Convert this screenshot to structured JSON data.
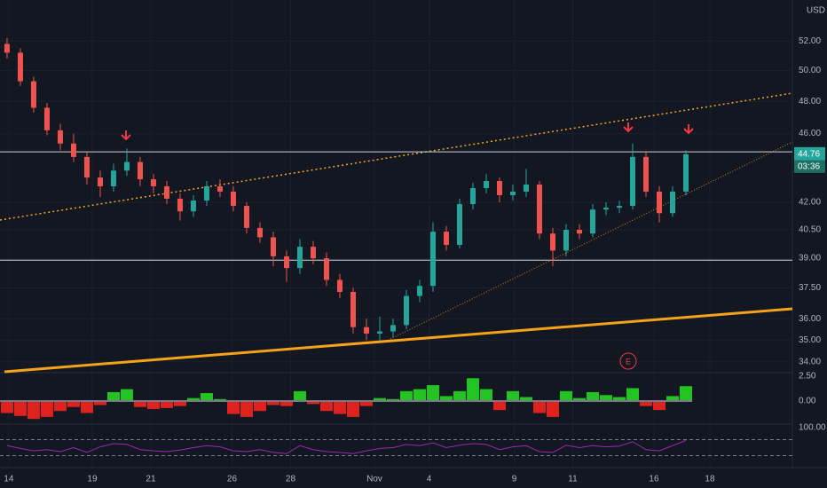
{
  "chart_data": {
    "type": "candlestick",
    "currency": "USD",
    "countdown": "03:36",
    "earnings_marker": "E",
    "log": true,
    "grid": true,
    "up_color": "#26a69a",
    "down_color": "#ef5350",
    "open": [
      51.8,
      51.2,
      49.3,
      47.6,
      46.2,
      45.4,
      44.6,
      43.4,
      42.9,
      43.8,
      44.3,
      43.3,
      42.9,
      42.2,
      41.5,
      42.1,
      42.9,
      42.6,
      41.8,
      40.6,
      40.1,
      39.1,
      38.5,
      39.6,
      39.0,
      37.9,
      37.3,
      35.6,
      35.3,
      35.4,
      35.7,
      37.1,
      37.6,
      40.4,
      39.7,
      41.9,
      42.8,
      43.2,
      42.4,
      42.6,
      43.0,
      40.3,
      39.4,
      40.5,
      40.3,
      41.6,
      41.7,
      41.8,
      44.6,
      42.6,
      41.4,
      42.6
    ],
    "high": [
      52.2,
      51.5,
      49.6,
      47.9,
      46.6,
      46.0,
      44.9,
      43.8,
      44.2,
      45.1,
      44.6,
      43.6,
      43.2,
      42.5,
      42.4,
      43.2,
      43.3,
      42.9,
      42.0,
      40.9,
      40.4,
      39.4,
      40.0,
      39.9,
      39.3,
      38.2,
      37.5,
      36.0,
      36.1,
      36.0,
      37.4,
      37.9,
      40.9,
      40.7,
      42.2,
      43.1,
      43.6,
      43.4,
      43.0,
      43.9,
      43.2,
      40.6,
      40.8,
      40.8,
      41.9,
      42.0,
      42.1,
      45.4,
      44.9,
      42.9,
      42.9,
      45.0
    ],
    "low": [
      50.8,
      49.0,
      47.3,
      45.9,
      45.0,
      44.3,
      43.0,
      42.3,
      42.6,
      43.5,
      42.9,
      42.5,
      41.9,
      41.0,
      41.2,
      41.8,
      42.3,
      41.5,
      40.3,
      39.8,
      38.6,
      37.8,
      38.2,
      38.7,
      37.6,
      37.0,
      35.3,
      35.0,
      35.0,
      35.1,
      35.5,
      36.8,
      37.3,
      39.4,
      39.5,
      41.6,
      42.5,
      42.0,
      42.1,
      42.3,
      40.0,
      38.6,
      39.1,
      40.0,
      40.1,
      41.3,
      41.4,
      41.6,
      42.3,
      40.9,
      41.2,
      42.4
    ],
    "close": [
      51.2,
      49.3,
      47.6,
      46.2,
      45.4,
      44.6,
      43.4,
      42.9,
      43.8,
      44.3,
      43.3,
      42.9,
      42.2,
      41.5,
      42.1,
      42.9,
      42.6,
      41.8,
      40.6,
      40.1,
      39.1,
      38.5,
      39.6,
      39.0,
      37.9,
      37.3,
      35.6,
      35.3,
      35.4,
      35.7,
      37.1,
      37.6,
      40.4,
      39.7,
      41.9,
      42.8,
      43.2,
      42.4,
      42.6,
      43.0,
      40.3,
      39.4,
      40.5,
      40.3,
      41.6,
      41.7,
      41.8,
      44.6,
      42.6,
      41.4,
      42.6,
      44.76
    ],
    "levels": [
      44.9,
      38.9
    ],
    "xlim": [
      -0.53,
      59
    ],
    "xticks": [
      {
        "value": 0.13,
        "label": "14"
      },
      {
        "value": 6.4,
        "label": "19"
      },
      {
        "value": 10.8,
        "label": "21"
      },
      {
        "value": 16.9,
        "label": "26"
      },
      {
        "value": 21.3,
        "label": "28"
      },
      {
        "value": 27.6,
        "label": "Nov"
      },
      {
        "value": 31.7,
        "label": "4"
      },
      {
        "value": 38.1,
        "label": "9"
      },
      {
        "value": 42.5,
        "label": "11"
      },
      {
        "value": 48.6,
        "label": "16"
      },
      {
        "value": 52.8,
        "label": "18"
      }
    ],
    "ylim": [
      33.52,
      54.9
    ],
    "yticks": [
      {
        "value": 34,
        "label": "34.00"
      },
      {
        "value": 35,
        "label": "35.00"
      },
      {
        "value": 36,
        "label": "36.00"
      },
      {
        "value": 37.5,
        "label": "37.50"
      },
      {
        "value": 39,
        "label": "39.00"
      },
      {
        "value": 40.5,
        "label": "40.50"
      },
      {
        "value": 42,
        "label": "42.00"
      },
      {
        "value": 46,
        "label": "46.00"
      },
      {
        "value": 48,
        "label": "48.00"
      },
      {
        "value": 50,
        "label": "50.00"
      },
      {
        "value": 52,
        "label": "52.00"
      }
    ],
    "histogram": {
      "pos_color": "#22c322",
      "neg_color": "#e0221f",
      "ylim": [
        -2.32,
        2.86
      ],
      "yticks": [
        {
          "value": 2.5,
          "label": "2.50"
        },
        {
          "value": 0,
          "label": "0.00"
        }
      ],
      "values": [
        -1.2,
        -1.5,
        -1.8,
        -1.6,
        -1.0,
        -0.6,
        -1.2,
        -0.4,
        0.9,
        1.2,
        -0.6,
        -0.8,
        -0.7,
        -0.5,
        0.3,
        0.8,
        0.2,
        -1.3,
        -1.6,
        -1.0,
        -0.4,
        -0.5,
        1.0,
        -0.3,
        -1.0,
        -1.3,
        -1.6,
        -0.5,
        0.3,
        0.2,
        1.0,
        1.2,
        1.6,
        0.5,
        1.0,
        2.3,
        1.2,
        -0.9,
        1.0,
        0.4,
        -1.2,
        -1.6,
        1.0,
        0.3,
        0.9,
        0.6,
        0.4,
        1.3,
        -0.5,
        -0.9,
        0.5,
        1.5
      ]
    },
    "oscillator": {
      "color": "#9c27b0",
      "ylim": [
        0,
        100
      ],
      "yticks": [
        {
          "value": 100,
          "label": "100.00"
        }
      ],
      "levels": [
        70,
        30
      ],
      "values": [
        55,
        48,
        42,
        45,
        40,
        50,
        38,
        52,
        60,
        58,
        45,
        42,
        40,
        44,
        50,
        55,
        52,
        42,
        40,
        45,
        38,
        35,
        55,
        45,
        40,
        38,
        35,
        42,
        48,
        50,
        58,
        55,
        62,
        50,
        56,
        60,
        58,
        45,
        52,
        55,
        40,
        38,
        56,
        50,
        55,
        52,
        54,
        65,
        45,
        42,
        55,
        68
      ]
    }
  }
}
